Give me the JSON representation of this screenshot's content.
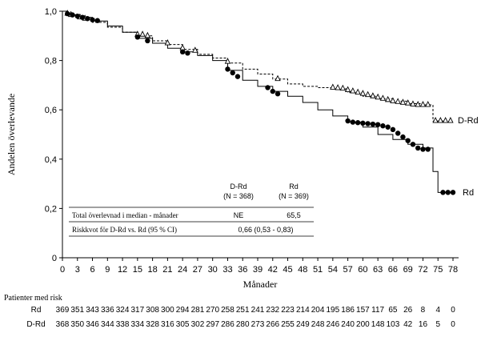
{
  "chart_data": {
    "type": "line",
    "title": "",
    "xlabel": "Månader",
    "ylabel": "Andelen överlevande",
    "xlim": [
      0,
      78
    ],
    "ylim": [
      0,
      1.0
    ],
    "x_ticks": [
      "0",
      "3",
      "6",
      "9",
      "12",
      "15",
      "18",
      "21",
      "24",
      "27",
      "30",
      "33",
      "36",
      "39",
      "42",
      "45",
      "48",
      "51",
      "54",
      "57",
      "60",
      "63",
      "66",
      "69",
      "72",
      "75",
      "78"
    ],
    "y_ticks": [
      "0",
      "0,2",
      "0,4",
      "0,6",
      "0,8",
      "1,0"
    ],
    "series": [
      {
        "name": "D-Rd",
        "style": "dashed",
        "censor_marker": "open-triangle",
        "points": [
          [
            0,
            1.0
          ],
          [
            1,
            0.985
          ],
          [
            3,
            0.975
          ],
          [
            6,
            0.955
          ],
          [
            9,
            0.935
          ],
          [
            12,
            0.915
          ],
          [
            15,
            0.9
          ],
          [
            18,
            0.88
          ],
          [
            21,
            0.865
          ],
          [
            24,
            0.845
          ],
          [
            27,
            0.825
          ],
          [
            30,
            0.81
          ],
          [
            33,
            0.79
          ],
          [
            36,
            0.765
          ],
          [
            39,
            0.745
          ],
          [
            42,
            0.725
          ],
          [
            45,
            0.705
          ],
          [
            48,
            0.695
          ],
          [
            51,
            0.69
          ],
          [
            54,
            0.685
          ],
          [
            57,
            0.67
          ],
          [
            60,
            0.655
          ],
          [
            63,
            0.645
          ],
          [
            66,
            0.635
          ],
          [
            69,
            0.625
          ],
          [
            72,
            0.62
          ],
          [
            74,
            0.62
          ],
          [
            74,
            0.555
          ],
          [
            78,
            0.555
          ]
        ],
        "censored": [
          [
            1,
            0.99
          ],
          [
            1.7,
            0.985
          ],
          [
            3.5,
            0.975
          ],
          [
            4.5,
            0.97
          ],
          [
            15,
            0.905
          ],
          [
            16,
            0.905
          ],
          [
            17,
            0.9
          ],
          [
            21,
            0.87
          ],
          [
            24,
            0.85
          ],
          [
            26.5,
            0.84
          ],
          [
            33,
            0.795
          ],
          [
            43,
            0.725
          ],
          [
            54,
            0.69
          ],
          [
            55,
            0.688
          ],
          [
            56,
            0.686
          ],
          [
            57,
            0.68
          ],
          [
            58,
            0.675
          ],
          [
            59,
            0.67
          ],
          [
            60,
            0.665
          ],
          [
            61,
            0.66
          ],
          [
            62,
            0.655
          ],
          [
            63,
            0.65
          ],
          [
            64,
            0.645
          ],
          [
            65,
            0.64
          ],
          [
            66,
            0.635
          ],
          [
            67,
            0.632
          ],
          [
            68,
            0.629
          ],
          [
            69,
            0.626
          ],
          [
            70,
            0.622
          ],
          [
            71,
            0.62
          ],
          [
            72,
            0.62
          ],
          [
            73,
            0.62
          ],
          [
            74.5,
            0.555
          ],
          [
            75.5,
            0.555
          ],
          [
            76.5,
            0.555
          ],
          [
            77.5,
            0.555
          ]
        ]
      },
      {
        "name": "Rd",
        "style": "solid",
        "censor_marker": "filled-circle",
        "points": [
          [
            0,
            1.0
          ],
          [
            1,
            0.985
          ],
          [
            3,
            0.975
          ],
          [
            6,
            0.96
          ],
          [
            9,
            0.94
          ],
          [
            12,
            0.915
          ],
          [
            15,
            0.89
          ],
          [
            18,
            0.87
          ],
          [
            21,
            0.85
          ],
          [
            24,
            0.835
          ],
          [
            27,
            0.82
          ],
          [
            30,
            0.8
          ],
          [
            33,
            0.76
          ],
          [
            36,
            0.72
          ],
          [
            39,
            0.695
          ],
          [
            42,
            0.675
          ],
          [
            45,
            0.655
          ],
          [
            48,
            0.63
          ],
          [
            51,
            0.6
          ],
          [
            54,
            0.575
          ],
          [
            57,
            0.55
          ],
          [
            60,
            0.53
          ],
          [
            63,
            0.5
          ],
          [
            66,
            0.48
          ],
          [
            69,
            0.46
          ],
          [
            72,
            0.445
          ],
          [
            74,
            0.44
          ],
          [
            74,
            0.35
          ],
          [
            75,
            0.35
          ],
          [
            75,
            0.265
          ],
          [
            78,
            0.265
          ]
        ],
        "censored": [
          [
            1,
            0.99
          ],
          [
            2,
            0.985
          ],
          [
            3,
            0.98
          ],
          [
            4,
            0.975
          ],
          [
            5,
            0.97
          ],
          [
            6,
            0.965
          ],
          [
            7,
            0.962
          ],
          [
            15,
            0.895
          ],
          [
            17,
            0.88
          ],
          [
            24,
            0.835
          ],
          [
            25,
            0.83
          ],
          [
            33,
            0.765
          ],
          [
            34,
            0.75
          ],
          [
            35,
            0.735
          ],
          [
            41,
            0.69
          ],
          [
            42,
            0.675
          ],
          [
            43,
            0.665
          ],
          [
            57,
            0.555
          ],
          [
            58,
            0.55
          ],
          [
            59,
            0.548
          ],
          [
            60,
            0.546
          ],
          [
            61,
            0.544
          ],
          [
            62,
            0.542
          ],
          [
            63,
            0.54
          ],
          [
            64,
            0.535
          ],
          [
            65,
            0.53
          ],
          [
            66,
            0.52
          ],
          [
            67,
            0.505
          ],
          [
            68,
            0.49
          ],
          [
            69,
            0.475
          ],
          [
            70,
            0.46
          ],
          [
            71,
            0.445
          ],
          [
            72,
            0.44
          ],
          [
            73,
            0.44
          ],
          [
            76,
            0.265
          ],
          [
            77,
            0.265
          ],
          [
            78,
            0.265
          ]
        ]
      }
    ],
    "legend_labels": {
      "d_rd": "D-Rd",
      "rd": "Rd"
    },
    "inset_table": {
      "col_drd": {
        "name": "D-Rd",
        "n": "(N = 368)"
      },
      "col_rd": {
        "name": "Rd",
        "n": "(N = 369)"
      },
      "row1": {
        "label": "Total överlevnad i median - månader",
        "drd": "NE",
        "rd": "65,5"
      },
      "row2": {
        "label": "Riskkvot för D-Rd vs. Rd (95 % CI)",
        "value": "0,66 (0,53 - 0,83)"
      }
    },
    "risk_table": {
      "title": "Patienter med risk",
      "rows": [
        {
          "label": "Rd",
          "values": [
            "369",
            "351",
            "343",
            "336",
            "324",
            "317",
            "308",
            "300",
            "294",
            "281",
            "270",
            "258",
            "251",
            "241",
            "232",
            "223",
            "214",
            "204",
            "195",
            "186",
            "157",
            "117",
            "65",
            "26",
            "8",
            "4",
            "0"
          ]
        },
        {
          "label": "D-Rd",
          "values": [
            "368",
            "350",
            "346",
            "344",
            "338",
            "334",
            "328",
            "316",
            "305",
            "302",
            "297",
            "286",
            "280",
            "273",
            "266",
            "255",
            "249",
            "248",
            "246",
            "240",
            "200",
            "148",
            "103",
            "42",
            "16",
            "5",
            "0"
          ]
        }
      ]
    }
  }
}
